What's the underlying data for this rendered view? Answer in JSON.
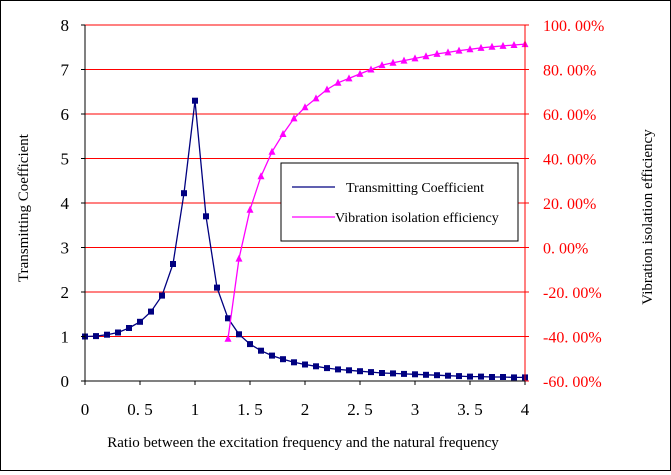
{
  "chart_data": {
    "type": "line",
    "x": [
      0,
      0.1,
      0.2,
      0.3,
      0.4,
      0.5,
      0.6,
      0.7,
      0.8,
      0.9,
      1.0,
      1.1,
      1.2,
      1.3,
      1.4,
      1.5,
      1.6,
      1.7,
      1.8,
      1.9,
      2.0,
      2.1,
      2.2,
      2.3,
      2.4,
      2.5,
      2.6,
      2.7,
      2.8,
      2.9,
      3.0,
      3.1,
      3.2,
      3.3,
      3.4,
      3.5,
      3.6,
      3.7,
      3.8,
      3.9,
      4.0
    ],
    "xlabel": "Ratio between the excitation frequency and the natural frequency",
    "xlim": [
      0,
      4
    ],
    "x_ticks": [
      "0",
      "0. 5",
      "1",
      "1. 5",
      "2",
      "2. 5",
      "3",
      "3. 5",
      "4"
    ],
    "ylabel": "Transmitting Coefficient",
    "ylim": [
      0,
      8
    ],
    "y_ticks": [
      "0",
      "1",
      "2",
      "3",
      "4",
      "5",
      "6",
      "7",
      "8"
    ],
    "y2label": "Vibration isolation efficiency",
    "y2lim": [
      -60,
      100
    ],
    "y2_ticks": [
      "-60. 00%",
      "-40. 00%",
      "-20. 00%",
      "0. 00%",
      "20. 00%",
      "40. 00%",
      "60. 00%",
      "80. 00%",
      "100. 00%"
    ],
    "grid": "horizontal",
    "legend_position": "right-center",
    "series": [
      {
        "name": "Transmitting Coefficient",
        "axis": "left",
        "color": "#000080",
        "marker": "square",
        "values": [
          1.0,
          1.01,
          1.04,
          1.09,
          1.19,
          1.33,
          1.56,
          1.92,
          2.63,
          4.22,
          6.3,
          3.7,
          2.1,
          1.41,
          1.05,
          0.83,
          0.68,
          0.57,
          0.49,
          0.42,
          0.37,
          0.33,
          0.29,
          0.26,
          0.24,
          0.22,
          0.2,
          0.18,
          0.17,
          0.16,
          0.15,
          0.14,
          0.13,
          0.12,
          0.11,
          0.1,
          0.1,
          0.09,
          0.09,
          0.08,
          0.08
        ]
      },
      {
        "name": "Vibration isolation efficiency",
        "axis": "right",
        "color": "#ff00ff",
        "marker": "triangle",
        "values": [
          null,
          null,
          null,
          null,
          null,
          null,
          null,
          null,
          null,
          null,
          null,
          null,
          null,
          -41,
          -5,
          17,
          32,
          43,
          51,
          58,
          63,
          67,
          71,
          74,
          76,
          78,
          80,
          82,
          83,
          84,
          85,
          86,
          87,
          87.7,
          88.5,
          89.1,
          89.7,
          90.2,
          90.6,
          91,
          91.4
        ]
      }
    ]
  }
}
